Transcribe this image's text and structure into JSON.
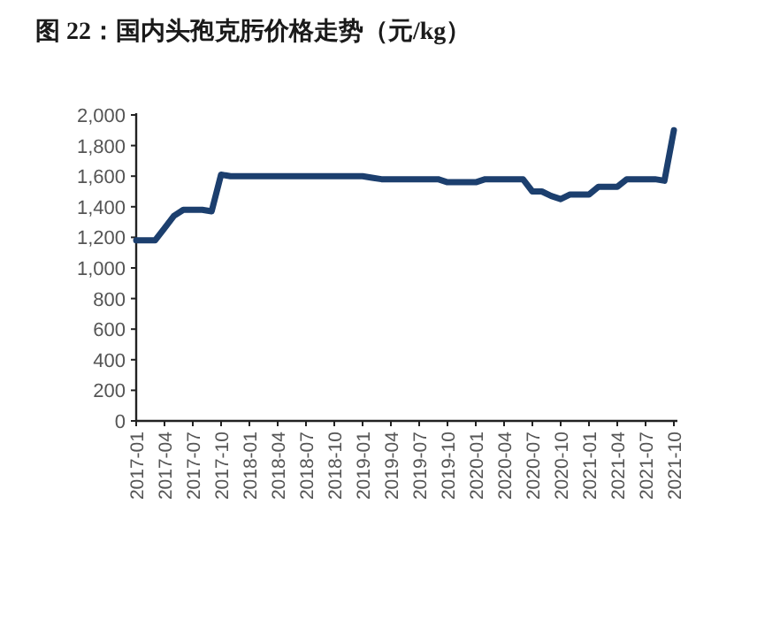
{
  "chart_data": {
    "type": "line",
    "title": "图 22：国内头孢克肟价格走势（元/kg）",
    "x": [
      "2017-01",
      "2017-02",
      "2017-03",
      "2017-04",
      "2017-05",
      "2017-06",
      "2017-07",
      "2017-08",
      "2017-09",
      "2017-10",
      "2017-11",
      "2017-12",
      "2018-01",
      "2018-02",
      "2018-03",
      "2018-04",
      "2018-05",
      "2018-06",
      "2018-07",
      "2018-08",
      "2018-09",
      "2018-10",
      "2018-11",
      "2018-12",
      "2019-01",
      "2019-02",
      "2019-03",
      "2019-04",
      "2019-05",
      "2019-06",
      "2019-07",
      "2019-08",
      "2019-09",
      "2019-10",
      "2019-11",
      "2019-12",
      "2020-01",
      "2020-02",
      "2020-03",
      "2020-04",
      "2020-05",
      "2020-06",
      "2020-07",
      "2020-08",
      "2020-09",
      "2020-10",
      "2020-11",
      "2020-12",
      "2021-01",
      "2021-02",
      "2021-03",
      "2021-04",
      "2021-05",
      "2021-06",
      "2021-07",
      "2021-08",
      "2021-09",
      "2021-10"
    ],
    "series": [
      {
        "color": "#1c3f6e",
        "values": [
          1180,
          1180,
          1180,
          1260,
          1340,
          1380,
          1380,
          1380,
          1370,
          1610,
          1600,
          1600,
          1600,
          1600,
          1600,
          1600,
          1600,
          1600,
          1600,
          1600,
          1600,
          1600,
          1600,
          1600,
          1600,
          1590,
          1580,
          1580,
          1580,
          1580,
          1580,
          1580,
          1580,
          1560,
          1560,
          1560,
          1560,
          1580,
          1580,
          1580,
          1580,
          1580,
          1500,
          1500,
          1470,
          1450,
          1480,
          1480,
          1480,
          1530,
          1530,
          1530,
          1580,
          1580,
          1580,
          1580,
          1570,
          1900
        ]
      }
    ],
    "xlim": [
      "2017-01",
      "2021-10"
    ],
    "xticks": [
      "2017-01",
      "2017-04",
      "2017-07",
      "2017-10",
      "2018-01",
      "2018-04",
      "2018-07",
      "2018-10",
      "2019-01",
      "2019-04",
      "2019-07",
      "2019-10",
      "2020-01",
      "2020-04",
      "2020-07",
      "2020-10",
      "2021-01",
      "2021-04",
      "2021-07",
      "2021-10"
    ],
    "ylim": [
      0,
      2000
    ],
    "yticks": [
      {
        "value": 0,
        "label": "0"
      },
      {
        "value": 200,
        "label": "200"
      },
      {
        "value": 400,
        "label": "400"
      },
      {
        "value": 600,
        "label": "600"
      },
      {
        "value": 800,
        "label": "800"
      },
      {
        "value": 1000,
        "label": "1,000"
      },
      {
        "value": 1200,
        "label": "1,200"
      },
      {
        "value": 1400,
        "label": "1,400"
      },
      {
        "value": 1600,
        "label": "1,600"
      },
      {
        "value": 1800,
        "label": "1,800"
      },
      {
        "value": 2000,
        "label": "2,000"
      }
    ],
    "grid": false,
    "marker": "none",
    "line_style": "solid"
  }
}
